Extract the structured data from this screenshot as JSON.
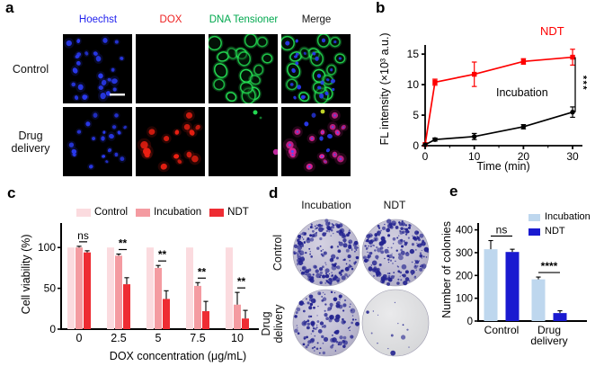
{
  "figure": {
    "panels": {
      "a": {
        "label": "a",
        "column_headers": [
          {
            "text": "Hoechst",
            "color": "#2323ee"
          },
          {
            "text": "DOX",
            "color": "#ee2222"
          },
          {
            "text": "DNA Tensioner",
            "color": "#00a84e"
          },
          {
            "text": "Merge",
            "color": "#151515"
          }
        ],
        "row_labels": [
          "Control",
          "Drug delivery"
        ],
        "channels": [
          "hoechst",
          "dox",
          "dna-tensioner",
          "merge"
        ]
      },
      "b": {
        "label": "b",
        "significance": "***"
      },
      "c": {
        "label": "c"
      },
      "d": {
        "label": "d",
        "column_headers": [
          "Incubation",
          "NDT"
        ],
        "row_labels": [
          "Control",
          "Drug delivery"
        ],
        "dish_density": [
          [
            "dense",
            "dense"
          ],
          [
            "moderate",
            "sparse"
          ]
        ]
      },
      "e": {
        "label": "e"
      }
    }
  },
  "chart_data": [
    {
      "panel": "b",
      "type": "line",
      "x": [
        0,
        2,
        10,
        20,
        30
      ],
      "series": [
        {
          "name": "NDT",
          "color": "#fe0000",
          "marker": "square",
          "values": [
            0.2,
            10.4,
            11.7,
            13.8,
            14.5
          ],
          "errors": [
            0,
            0.5,
            2.0,
            0.45,
            1.3
          ]
        },
        {
          "name": "Incubation",
          "color": "#000000",
          "marker": "circle",
          "values": [
            0.15,
            1.0,
            1.5,
            3.1,
            5.5
          ],
          "errors": [
            0,
            0.25,
            0.5,
            0.35,
            0.85
          ]
        }
      ],
      "xlabel": "Time (min)",
      "ylabel": "FL intensity (×10³ a.u.)",
      "xticks": [
        0,
        10,
        20,
        30
      ],
      "yticks": [
        0,
        5,
        10,
        15
      ],
      "xlim": [
        0,
        32
      ],
      "ylim": [
        0,
        16.5
      ],
      "significance": "***",
      "legend_position": "inline-labels"
    },
    {
      "panel": "c",
      "type": "bar",
      "categories": [
        "0",
        "2.5",
        "5",
        "7.5",
        "10"
      ],
      "series": [
        {
          "name": "Control",
          "color": "#fbdbdf",
          "values": [
            100,
            100,
            100,
            100,
            100
          ],
          "errors": [
            0,
            0,
            0,
            0,
            0
          ]
        },
        {
          "name": "Incubation",
          "color": "#f49ba1",
          "values": [
            100,
            90,
            75,
            53,
            30
          ],
          "errors": [
            1.5,
            2,
            3,
            4,
            15
          ]
        },
        {
          "name": "NDT",
          "color": "#ee2c33",
          "values": [
            94,
            55,
            37,
            22,
            13
          ],
          "errors": [
            2,
            8,
            10,
            12,
            10
          ]
        }
      ],
      "xlabel": "DOX concentration (μg/mL)",
      "ylabel": "Cell viability (%)",
      "yticks": [
        0,
        50,
        100
      ],
      "ylim": [
        0,
        130
      ],
      "significance": {
        "pair": [
          1,
          2
        ],
        "labels": [
          "ns",
          "**",
          "**",
          "**",
          "**"
        ]
      },
      "legend_position": "top"
    },
    {
      "panel": "e",
      "type": "bar",
      "categories": [
        [
          "Control"
        ],
        [
          "Drug",
          "delivery"
        ]
      ],
      "series": [
        {
          "name": "Incubation",
          "color": "#bed7ee",
          "values": [
            315,
            183
          ],
          "errors": [
            38,
            10
          ]
        },
        {
          "name": "NDT",
          "color": "#1a1ad0",
          "values": [
            303,
            35
          ],
          "errors": [
            12,
            10
          ]
        }
      ],
      "xlabel": "",
      "ylabel": "Number of colonies",
      "yticks": [
        0,
        100,
        200,
        300,
        400
      ],
      "ylim": [
        0,
        430
      ],
      "significance": {
        "pair": [
          0,
          1
        ],
        "labels": [
          "ns",
          "****"
        ]
      },
      "legend_position": "top-right"
    }
  ]
}
